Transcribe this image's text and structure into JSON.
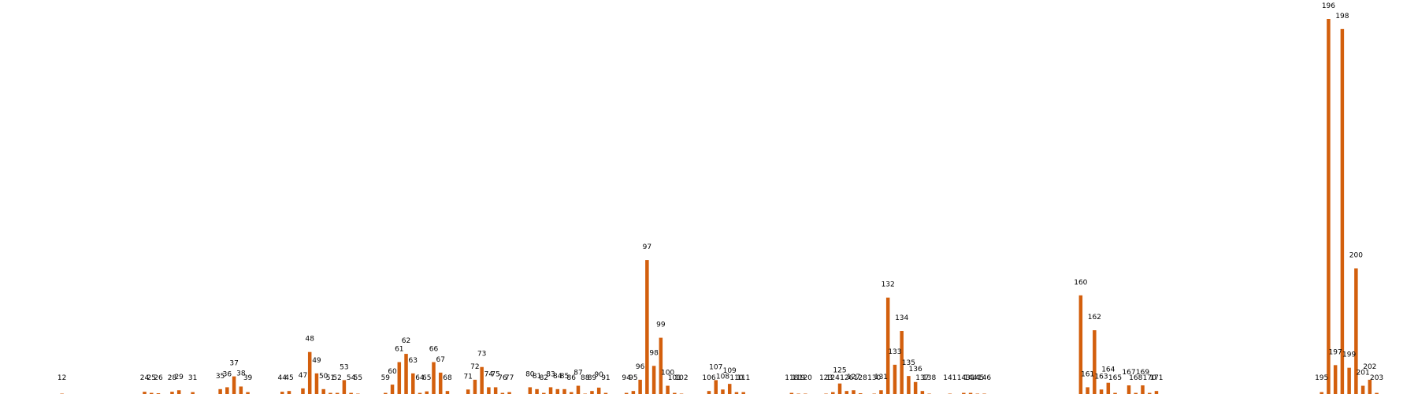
{
  "chart_data": {
    "type": "bar",
    "title": "",
    "xlabel": "",
    "ylabel": "",
    "ylim": [
      0,
      100
    ],
    "xlim": [
      3,
      209
    ],
    "grid": false,
    "legend": "none",
    "colors": {
      "bar": "#d35f0d"
    },
    "bars": [
      {
        "x": 12,
        "value": 0.1
      },
      {
        "x": 24,
        "value": 0.6
      },
      {
        "x": 25,
        "value": 0.3
      },
      {
        "x": 26,
        "value": 0.2
      },
      {
        "x": 28,
        "value": 0.6
      },
      {
        "x": 29,
        "value": 1.0
      },
      {
        "x": 31,
        "value": 0.5
      },
      {
        "x": 35,
        "value": 1.3
      },
      {
        "x": 36,
        "value": 1.8
      },
      {
        "x": 37,
        "value": 4.7
      },
      {
        "x": 38,
        "value": 2.0
      },
      {
        "x": 39,
        "value": 0.5
      },
      {
        "x": 44,
        "value": 0.6
      },
      {
        "x": 45,
        "value": 0.8
      },
      {
        "x": 47,
        "value": 1.5
      },
      {
        "x": 48,
        "value": 11.2
      },
      {
        "x": 49,
        "value": 5.5
      },
      {
        "x": 50,
        "value": 1.3
      },
      {
        "x": 51,
        "value": 0.3
      },
      {
        "x": 52,
        "value": 0.3
      },
      {
        "x": 53,
        "value": 3.7
      },
      {
        "x": 54,
        "value": 0.3
      },
      {
        "x": 55,
        "value": 0.1
      },
      {
        "x": 59,
        "value": 0.3
      },
      {
        "x": 60,
        "value": 2.5
      },
      {
        "x": 61,
        "value": 8.5
      },
      {
        "x": 62,
        "value": 10.7
      },
      {
        "x": 63,
        "value": 5.5
      },
      {
        "x": 64,
        "value": 0.3
      },
      {
        "x": 65,
        "value": 0.7
      },
      {
        "x": 66,
        "value": 8.5
      },
      {
        "x": 67,
        "value": 5.7
      },
      {
        "x": 68,
        "value": 0.8
      },
      {
        "x": 71,
        "value": 1.2
      },
      {
        "x": 72,
        "value": 3.8
      },
      {
        "x": 73,
        "value": 7.2
      },
      {
        "x": 74,
        "value": 1.8
      },
      {
        "x": 75,
        "value": 1.8
      },
      {
        "x": 76,
        "value": 0.3
      },
      {
        "x": 77,
        "value": 0.5
      },
      {
        "x": 80,
        "value": 1.8
      },
      {
        "x": 81,
        "value": 1.3
      },
      {
        "x": 82,
        "value": 0.3
      },
      {
        "x": 83,
        "value": 1.8
      },
      {
        "x": 84,
        "value": 1.3
      },
      {
        "x": 85,
        "value": 1.3
      },
      {
        "x": 86,
        "value": 0.5
      },
      {
        "x": 87,
        "value": 2.2
      },
      {
        "x": 88,
        "value": 0.1
      },
      {
        "x": 89,
        "value": 0.8
      },
      {
        "x": 90,
        "value": 1.7
      },
      {
        "x": 91,
        "value": 0.3
      },
      {
        "x": 94,
        "value": 0.3
      },
      {
        "x": 95,
        "value": 0.8
      },
      {
        "x": 96,
        "value": 3.8
      },
      {
        "x": 97,
        "value": 35.7
      },
      {
        "x": 98,
        "value": 7.5
      },
      {
        "x": 99,
        "value": 15.0
      },
      {
        "x": 100,
        "value": 2.2
      },
      {
        "x": 101,
        "value": 0.3
      },
      {
        "x": 102,
        "value": 0.1
      },
      {
        "x": 106,
        "value": 0.8
      },
      {
        "x": 107,
        "value": 3.7
      },
      {
        "x": 108,
        "value": 1.2
      },
      {
        "x": 109,
        "value": 2.7
      },
      {
        "x": 110,
        "value": 0.5
      },
      {
        "x": 111,
        "value": 0.5
      },
      {
        "x": 118,
        "value": 0.3
      },
      {
        "x": 119,
        "value": 0.1
      },
      {
        "x": 120,
        "value": 0.1
      },
      {
        "x": 123,
        "value": 0.1
      },
      {
        "x": 124,
        "value": 0.5
      },
      {
        "x": 125,
        "value": 2.8
      },
      {
        "x": 126,
        "value": 0.8
      },
      {
        "x": 127,
        "value": 1.0
      },
      {
        "x": 128,
        "value": 0.2
      },
      {
        "x": 130,
        "value": 0.1
      },
      {
        "x": 131,
        "value": 1.0
      },
      {
        "x": 132,
        "value": 25.7
      },
      {
        "x": 133,
        "value": 7.8
      },
      {
        "x": 134,
        "value": 16.8
      },
      {
        "x": 135,
        "value": 4.8
      },
      {
        "x": 136,
        "value": 3.2
      },
      {
        "x": 137,
        "value": 0.8
      },
      {
        "x": 138,
        "value": 0.1
      },
      {
        "x": 141,
        "value": 0.1
      },
      {
        "x": 143,
        "value": 0.3
      },
      {
        "x": 144,
        "value": 0.3
      },
      {
        "x": 145,
        "value": 0.1
      },
      {
        "x": 146,
        "value": 0.1
      },
      {
        "x": 160,
        "value": 26.3
      },
      {
        "x": 161,
        "value": 1.8
      },
      {
        "x": 162,
        "value": 17.0
      },
      {
        "x": 163,
        "value": 1.2
      },
      {
        "x": 164,
        "value": 3.0
      },
      {
        "x": 165,
        "value": 0.3
      },
      {
        "x": 167,
        "value": 2.3
      },
      {
        "x": 168,
        "value": 0.3
      },
      {
        "x": 169,
        "value": 2.3
      },
      {
        "x": 170,
        "value": 0.3
      },
      {
        "x": 171,
        "value": 0.8
      },
      {
        "x": 195,
        "value": 0.5
      },
      {
        "x": 196,
        "value": 100.0
      },
      {
        "x": 197,
        "value": 7.7
      },
      {
        "x": 198,
        "value": 97.3
      },
      {
        "x": 199,
        "value": 7.0
      },
      {
        "x": 200,
        "value": 33.5
      },
      {
        "x": 201,
        "value": 2.2
      },
      {
        "x": 202,
        "value": 3.8
      },
      {
        "x": 203,
        "value": 0.3
      }
    ]
  }
}
